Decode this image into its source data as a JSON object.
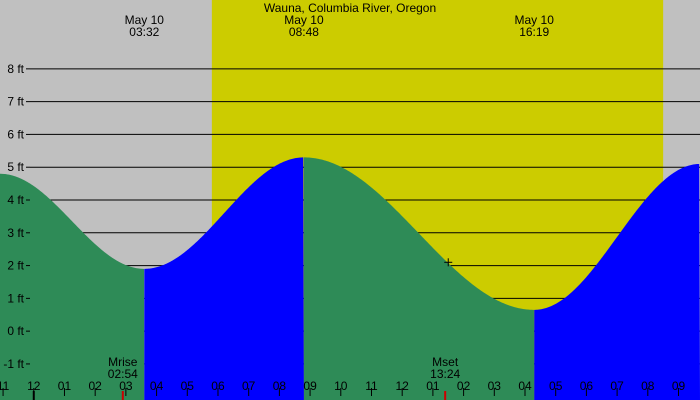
{
  "chart_data": {
    "type": "area",
    "title": "Wauna, Columbia River, Oregon",
    "y_unit": "ft",
    "ylim": [
      -2.1,
      10.1
    ],
    "y_ticks": [
      {
        "value": 8,
        "label": "8 ft"
      },
      {
        "value": 7,
        "label": "7 ft"
      },
      {
        "value": 6,
        "label": "6 ft"
      },
      {
        "value": 5,
        "label": "5 ft"
      },
      {
        "value": 4,
        "label": "4 ft"
      },
      {
        "value": 3,
        "label": "3 ft"
      },
      {
        "value": 2,
        "label": "2 ft"
      },
      {
        "value": 1,
        "label": "1 ft"
      },
      {
        "value": 0,
        "label": "0 ft"
      },
      {
        "value": -1,
        "label": "-1 ft"
      }
    ],
    "xlim": [
      -1.1,
      21.7
    ],
    "x_unit": "hour of day, May 10",
    "x_ticks": [
      {
        "value": -1,
        "label": "11"
      },
      {
        "value": 0,
        "label": "12"
      },
      {
        "value": 1,
        "label": "01"
      },
      {
        "value": 2,
        "label": "02"
      },
      {
        "value": 3,
        "label": "03"
      },
      {
        "value": 4,
        "label": "04"
      },
      {
        "value": 5,
        "label": "05"
      },
      {
        "value": 6,
        "label": "06"
      },
      {
        "value": 7,
        "label": "07"
      },
      {
        "value": 8,
        "label": "08"
      },
      {
        "value": 9,
        "label": "09"
      },
      {
        "value": 10,
        "label": "10"
      },
      {
        "value": 11,
        "label": "11"
      },
      {
        "value": 12,
        "label": "12"
      },
      {
        "value": 13,
        "label": "01"
      },
      {
        "value": 14,
        "label": "02"
      },
      {
        "value": 15,
        "label": "03"
      },
      {
        "value": 16,
        "label": "04"
      },
      {
        "value": 17,
        "label": "05"
      },
      {
        "value": 18,
        "label": "06"
      },
      {
        "value": 19,
        "label": "07"
      },
      {
        "value": 20,
        "label": "08"
      },
      {
        "value": 21,
        "label": "09"
      }
    ],
    "daylight": {
      "start": 5.8,
      "end": 20.5
    },
    "tide_points": [
      {
        "x": -1.1,
        "y": 4.8
      },
      {
        "x": 3.6,
        "y": 1.9
      },
      {
        "x": 8.8,
        "y": 5.3
      },
      {
        "x": 16.3,
        "y": 0.65
      },
      {
        "x": 21.7,
        "y": 5.1
      }
    ],
    "extremes": [
      {
        "time": 3.6,
        "kind": "low",
        "date_label": "May 10",
        "time_label": "03:32"
      },
      {
        "time": 8.8,
        "kind": "high",
        "date_label": "May 10",
        "time_label": "08:48"
      },
      {
        "time": 16.3,
        "kind": "low",
        "date_label": "May 10",
        "time_label": "16:19"
      }
    ],
    "moon_events": [
      {
        "time": 2.9,
        "label": "Mrise",
        "time_label": "02:54"
      },
      {
        "time": 13.4,
        "label": "Mset",
        "time_label": "13:24"
      }
    ],
    "current_marker": {
      "x": 13.5,
      "y": 2.1
    },
    "colors": {
      "night": "#c0c0c0",
      "daylight": "#cccc00",
      "falling": "#2e8b57",
      "rising": "#0000ff",
      "grid": "#000000",
      "moon_tick": "#cc0000"
    }
  }
}
